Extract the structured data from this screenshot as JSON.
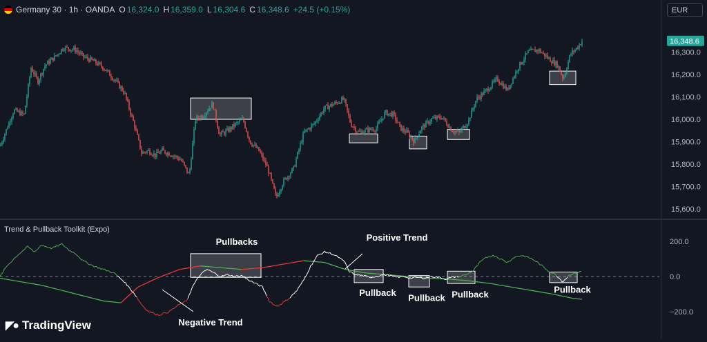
{
  "header": {
    "symbol": "Germany 30 · 1h · OANDA",
    "open_label": "O",
    "open": "16,324.0",
    "high_label": "H",
    "high": "16,359.0",
    "low_label": "L",
    "low": "16,304.6",
    "close_label": "C",
    "close": "16,348.6",
    "change": "+24.5 (+0.15%)"
  },
  "currency": "EUR",
  "indicator_title": "Trend & Pullback Toolkit (Expo)",
  "logo_text": "TradingView",
  "colors": {
    "background": "#131722",
    "up": "#26a69a",
    "down": "#ef5350",
    "fast_line": "#ffffff",
    "trend_up": "#4caf50",
    "trend_down": "#e53935",
    "box_fill": "rgba(255,255,255,0.18)",
    "box_border": "#ffffff"
  },
  "chart_data": [
    {
      "type": "candlestick",
      "ylim": [
        15560,
        16440
      ],
      "yticks": [
        "16,300.0",
        "16,200.0",
        "16,100.0",
        "16,000.0",
        "15,900.0",
        "15,800.0",
        "15,700.0",
        "15,600.0"
      ],
      "ytick_values": [
        16300,
        16200,
        16100,
        16000,
        15900,
        15800,
        15700,
        15600
      ],
      "last_price_label": "16,348.6",
      "last_price": 16348.6,
      "close_path": [
        [
          0,
          15880
        ],
        [
          10,
          15960
        ],
        [
          20,
          16040
        ],
        [
          35,
          16020
        ],
        [
          45,
          16230
        ],
        [
          55,
          16170
        ],
        [
          65,
          16240
        ],
        [
          80,
          16280
        ],
        [
          92,
          16320
        ],
        [
          110,
          16310
        ],
        [
          120,
          16280
        ],
        [
          135,
          16260
        ],
        [
          150,
          16230
        ],
        [
          165,
          16180
        ],
        [
          180,
          16120
        ],
        [
          195,
          15970
        ],
        [
          205,
          15850
        ],
        [
          215,
          15860
        ],
        [
          225,
          15840
        ],
        [
          235,
          15860
        ],
        [
          250,
          15840
        ],
        [
          262,
          15820
        ],
        [
          274,
          15750
        ],
        [
          283,
          16000
        ],
        [
          295,
          16020
        ],
        [
          308,
          16070
        ],
        [
          318,
          15930
        ],
        [
          330,
          15950
        ],
        [
          342,
          15980
        ],
        [
          352,
          16000
        ],
        [
          362,
          15900
        ],
        [
          375,
          15860
        ],
        [
          388,
          15780
        ],
        [
          400,
          15650
        ],
        [
          410,
          15720
        ],
        [
          425,
          15780
        ],
        [
          440,
          15940
        ],
        [
          455,
          15980
        ],
        [
          470,
          16050
        ],
        [
          485,
          16070
        ],
        [
          498,
          16090
        ],
        [
          508,
          15980
        ],
        [
          520,
          15940
        ],
        [
          530,
          15950
        ],
        [
          545,
          15960
        ],
        [
          558,
          16030
        ],
        [
          570,
          16020
        ],
        [
          580,
          15960
        ],
        [
          590,
          15940
        ],
        [
          600,
          15900
        ],
        [
          610,
          15960
        ],
        [
          625,
          16000
        ],
        [
          640,
          16010
        ],
        [
          655,
          15950
        ],
        [
          665,
          15940
        ],
        [
          678,
          15990
        ],
        [
          690,
          16090
        ],
        [
          705,
          16130
        ],
        [
          720,
          16180
        ],
        [
          735,
          16130
        ],
        [
          750,
          16230
        ],
        [
          765,
          16300
        ],
        [
          780,
          16310
        ],
        [
          795,
          16270
        ],
        [
          808,
          16240
        ],
        [
          816,
          16180
        ],
        [
          826,
          16290
        ],
        [
          836,
          16320
        ],
        [
          843,
          16349
        ]
      ],
      "boxes": [
        {
          "x0": 276,
          "x1": 364,
          "y0": 16095,
          "y1": 16000
        },
        {
          "x0": 506,
          "x1": 547,
          "y0": 15935,
          "y1": 15895
        },
        {
          "x0": 593,
          "x1": 618,
          "y0": 15925,
          "y1": 15868
        },
        {
          "x0": 648,
          "x1": 680,
          "y0": 15955,
          "y1": 15910
        },
        {
          "x0": 796,
          "x1": 834,
          "y0": 16215,
          "y1": 16155
        }
      ]
    },
    {
      "type": "line",
      "ylim": [
        -240,
        220
      ],
      "yticks": [
        "200.0",
        "0.0",
        "−200.0"
      ],
      "ytick_values": [
        200,
        0,
        -200
      ],
      "zero_line": 0,
      "series": [
        {
          "role": "fast",
          "x": [
            0,
            10,
            25,
            40,
            50,
            60,
            75,
            90,
            100,
            110,
            120,
            135,
            150,
            165,
            180,
            195,
            205,
            215,
            230,
            245,
            260,
            270,
            280,
            290,
            300,
            310,
            320,
            330,
            340,
            350,
            360,
            370,
            380,
            390,
            400,
            410,
            420,
            430,
            440,
            450,
            460,
            470,
            480,
            490,
            500,
            505,
            515,
            525,
            535,
            545,
            555,
            565,
            575,
            585,
            595,
            605,
            615,
            625,
            635,
            645,
            655,
            665,
            675,
            685,
            695,
            705,
            715,
            725,
            735,
            745,
            755,
            765,
            775,
            785,
            795,
            805,
            815,
            825,
            835,
            843
          ],
          "y": [
            0,
            60,
            120,
            170,
            140,
            180,
            160,
            185,
            150,
            130,
            90,
            60,
            40,
            20,
            -30,
            -100,
            -160,
            -200,
            -220,
            -200,
            -160,
            -140,
            -50,
            10,
            40,
            20,
            0,
            10,
            0,
            5,
            -20,
            -40,
            -60,
            -140,
            -170,
            -150,
            -120,
            -80,
            -20,
            60,
            120,
            140,
            130,
            110,
            80,
            30,
            10,
            5,
            -5,
            0,
            10,
            5,
            -5,
            0,
            -10,
            -5,
            -10,
            0,
            -5,
            -15,
            -5,
            0,
            10,
            30,
            80,
            110,
            120,
            100,
            80,
            110,
            120,
            110,
            90,
            60,
            30,
            10,
            -30,
            10,
            20,
            30
          ]
        },
        {
          "role": "trend",
          "x": [
            0,
            30,
            60,
            90,
            120,
            150,
            175,
            200,
            230,
            260,
            290,
            320,
            350,
            380,
            410,
            440,
            470,
            500,
            530,
            560,
            590,
            620,
            650,
            680,
            710,
            740,
            770,
            800,
            830,
            843
          ],
          "y": [
            -10,
            -30,
            -50,
            -80,
            -110,
            -140,
            -150,
            -60,
            -5,
            40,
            60,
            50,
            40,
            50,
            70,
            90,
            80,
            40,
            20,
            10,
            0,
            -10,
            -15,
            -25,
            -40,
            -60,
            -80,
            -100,
            -125,
            -130
          ]
        }
      ],
      "boxes": [
        {
          "x0": 276,
          "x1": 378,
          "y0": 130,
          "y1": -5
        },
        {
          "x0": 513,
          "x1": 555,
          "y0": 40,
          "y1": -35
        },
        {
          "x0": 592,
          "x1": 622,
          "y0": 5,
          "y1": -60
        },
        {
          "x0": 648,
          "x1": 688,
          "y0": 30,
          "y1": -40
        },
        {
          "x0": 796,
          "x1": 836,
          "y0": 25,
          "y1": -35
        }
      ],
      "annotations": [
        {
          "text": "Pullbacks",
          "x": 343,
          "y": 180
        },
        {
          "text": "Positive Trend",
          "x": 575,
          "y": 205
        },
        {
          "text": "Pullback",
          "x": 547,
          "y": -110
        },
        {
          "text": "Pullback",
          "x": 618,
          "y": -140
        },
        {
          "text": "Pullback",
          "x": 681,
          "y": -120
        },
        {
          "text": "Pullback",
          "x": 829,
          "y": -93
        },
        {
          "text": "Negative Trend",
          "x": 305,
          "y": -280
        }
      ]
    }
  ]
}
